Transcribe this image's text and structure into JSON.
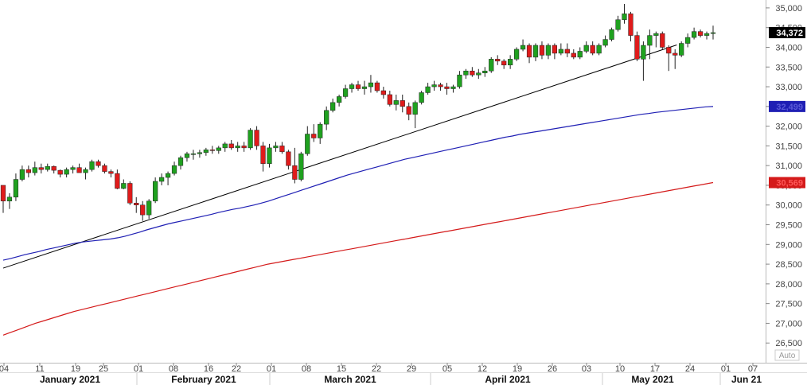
{
  "chart_data": {
    "type": "candlestick",
    "ylim": [
      26000,
      35200
    ],
    "y_ticks": [
      "35,000",
      "34,500",
      "34,000",
      "33,500",
      "33,000",
      "32,500",
      "32,000",
      "31,500",
      "31,000",
      "30,500",
      "30,000",
      "29,500",
      "29,000",
      "28,500",
      "28,000",
      "27,500",
      "27,000",
      "26,500"
    ],
    "x_day_ticks": [
      "04",
      "11",
      "19",
      "25",
      "01",
      "08",
      "16",
      "22",
      "01",
      "08",
      "15",
      "22",
      "29",
      "05",
      "12",
      "19",
      "26",
      "03",
      "10",
      "17",
      "24",
      "01",
      "07"
    ],
    "x_month_labels": [
      "January 2021",
      "February 2021",
      "March 2021",
      "April 2021",
      "May 2021",
      "Jun 21"
    ],
    "last_price_label": "34,372",
    "ma_short_label": "32,499",
    "ma_long_label": "30,569",
    "auto_label": "Auto",
    "colors": {
      "up": "#1fa11f",
      "down": "#e01b1b",
      "ma_short": "#1f1fb4",
      "ma_long": "#d41a1a",
      "trendline": "#000000"
    },
    "trendline": {
      "from": {
        "index": 0,
        "y": 28400
      },
      "to": {
        "index": 102,
        "y": 33930
      }
    },
    "ma_short": [
      28600,
      28640,
      28690,
      28740,
      28780,
      28820,
      28870,
      28910,
      28950,
      28990,
      29030,
      29060,
      29080,
      29100,
      29120,
      29140,
      29170,
      29210,
      29260,
      29310,
      29370,
      29420,
      29470,
      29520,
      29560,
      29600,
      29640,
      29680,
      29720,
      29760,
      29810,
      29850,
      29890,
      29920,
      29960,
      30000,
      30050,
      30100,
      30160,
      30220,
      30280,
      30340,
      30400,
      30460,
      30520,
      30580,
      30640,
      30700,
      30760,
      30810,
      30860,
      30910,
      30960,
      31010,
      31060,
      31110,
      31160,
      31200,
      31240,
      31280,
      31320,
      31360,
      31400,
      31440,
      31480,
      31520,
      31560,
      31600,
      31640,
      31680,
      31720,
      31750,
      31790,
      31820,
      31850,
      31880,
      31910,
      31940,
      31970,
      32000,
      32030,
      32060,
      32090,
      32120,
      32150,
      32180,
      32210,
      32240,
      32270,
      32300,
      32320,
      32350,
      32370,
      32390,
      32410,
      32430,
      32450,
      32470,
      32490,
      32499
    ],
    "ma_long": [
      26700,
      26760,
      26820,
      26880,
      26940,
      27000,
      27050,
      27100,
      27150,
      27200,
      27250,
      27300,
      27340,
      27380,
      27420,
      27460,
      27500,
      27540,
      27580,
      27620,
      27660,
      27700,
      27740,
      27780,
      27820,
      27860,
      27900,
      27940,
      27980,
      28020,
      28060,
      28100,
      28140,
      28180,
      28220,
      28260,
      28300,
      28340,
      28380,
      28420,
      28460,
      28500,
      28530,
      28560,
      28590,
      28620,
      28650,
      28680,
      28710,
      28740,
      28770,
      28800,
      28830,
      28860,
      28890,
      28920,
      28950,
      28980,
      29010,
      29040,
      29070,
      29100,
      29130,
      29160,
      29190,
      29220,
      29250,
      29280,
      29310,
      29340,
      29370,
      29400,
      29430,
      29460,
      29490,
      29520,
      29550,
      29580,
      29610,
      29640,
      29670,
      29700,
      29730,
      29760,
      29790,
      29820,
      29850,
      29880,
      29910,
      29940,
      29970,
      30000,
      30030,
      30060,
      30090,
      30120,
      30150,
      30180,
      30210,
      30240,
      30270,
      30300,
      30330,
      30360,
      30390,
      30420,
      30450,
      30480,
      30510,
      30540,
      30569
    ],
    "ohlc": [
      [
        30500,
        30500,
        29800,
        30100
      ],
      [
        30100,
        30300,
        29900,
        30200
      ],
      [
        30200,
        30800,
        30100,
        30650
      ],
      [
        30650,
        31000,
        30600,
        30900
      ],
      [
        30900,
        31000,
        30700,
        30820
      ],
      [
        30820,
        31100,
        30750,
        30950
      ],
      [
        30950,
        31050,
        30800,
        30900
      ],
      [
        30900,
        31050,
        30850,
        30980
      ],
      [
        30980,
        31000,
        30800,
        30880
      ],
      [
        30880,
        30900,
        30700,
        30780
      ],
      [
        30780,
        30950,
        30700,
        30900
      ],
      [
        30900,
        31000,
        30800,
        30950
      ],
      [
        30950,
        31050,
        30850,
        30820
      ],
      [
        30820,
        30950,
        30650,
        30900
      ],
      [
        30900,
        31150,
        30850,
        31100
      ],
      [
        31100,
        31150,
        30950,
        31000
      ],
      [
        31000,
        31050,
        30800,
        30850
      ],
      [
        30850,
        30900,
        30700,
        30800
      ],
      [
        30800,
        30900,
        30400,
        30420
      ],
      [
        30420,
        30650,
        30400,
        30550
      ],
      [
        30550,
        30600,
        30000,
        30050
      ],
      [
        30050,
        30200,
        29800,
        30000
      ],
      [
        30000,
        30100,
        29600,
        29750
      ],
      [
        29750,
        30150,
        29650,
        30100
      ],
      [
        30100,
        30700,
        30050,
        30600
      ],
      [
        30600,
        30800,
        30500,
        30700
      ],
      [
        30700,
        30850,
        30500,
        30800
      ],
      [
        30800,
        31100,
        30750,
        31000
      ],
      [
        31000,
        31250,
        30900,
        31200
      ],
      [
        31200,
        31350,
        31100,
        31300
      ],
      [
        31300,
        31400,
        31150,
        31300
      ],
      [
        31300,
        31400,
        31200,
        31330
      ],
      [
        31330,
        31450,
        31250,
        31400
      ],
      [
        31400,
        31500,
        31300,
        31380
      ],
      [
        31380,
        31500,
        31300,
        31450
      ],
      [
        31450,
        31600,
        31350,
        31550
      ],
      [
        31550,
        31650,
        31400,
        31450
      ],
      [
        31450,
        31600,
        31350,
        31500
      ],
      [
        31500,
        31600,
        31350,
        31450
      ],
      [
        31450,
        31950,
        31400,
        31900
      ],
      [
        31900,
        32000,
        31400,
        31500
      ],
      [
        31500,
        31600,
        30850,
        31050
      ],
      [
        31050,
        31550,
        30950,
        31450
      ],
      [
        31450,
        31600,
        31350,
        31500
      ],
      [
        31500,
        31600,
        31300,
        31350
      ],
      [
        31350,
        31400,
        30900,
        31000
      ],
      [
        31000,
        31450,
        30550,
        30650
      ],
      [
        30650,
        31350,
        30600,
        31300
      ],
      [
        31300,
        32000,
        31250,
        31800
      ],
      [
        31800,
        32050,
        31600,
        31700
      ],
      [
        31700,
        32100,
        31550,
        32050
      ],
      [
        32050,
        32500,
        31900,
        32400
      ],
      [
        32400,
        32700,
        32350,
        32600
      ],
      [
        32600,
        32800,
        32500,
        32750
      ],
      [
        32750,
        33050,
        32700,
        32950
      ],
      [
        32950,
        33100,
        32850,
        33050
      ],
      [
        33050,
        33150,
        32900,
        32950
      ],
      [
        32950,
        33150,
        32800,
        33000
      ],
      [
        33000,
        33300,
        32850,
        33100
      ],
      [
        33100,
        33150,
        32850,
        32900
      ],
      [
        32900,
        33000,
        32700,
        32800
      ],
      [
        32800,
        32900,
        32500,
        32550
      ],
      [
        32550,
        32800,
        32400,
        32650
      ],
      [
        32650,
        32800,
        32350,
        32500
      ],
      [
        32500,
        32600,
        32150,
        32300
      ],
      [
        32300,
        32650,
        31950,
        32600
      ],
      [
        32600,
        32900,
        32550,
        32850
      ],
      [
        32850,
        33100,
        32800,
        33000
      ],
      [
        33000,
        33150,
        32900,
        33050
      ],
      [
        33050,
        33100,
        32900,
        33000
      ],
      [
        33000,
        33100,
        32800,
        32950
      ],
      [
        32950,
        33050,
        32850,
        33000
      ],
      [
        33000,
        33400,
        32950,
        33300
      ],
      [
        33300,
        33450,
        33200,
        33400
      ],
      [
        33400,
        33500,
        33250,
        33300
      ],
      [
        33300,
        33450,
        33200,
        33350
      ],
      [
        33350,
        33500,
        33250,
        33400
      ],
      [
        33400,
        33750,
        33350,
        33700
      ],
      [
        33700,
        33800,
        33550,
        33650
      ],
      [
        33650,
        33700,
        33450,
        33550
      ],
      [
        33550,
        33800,
        33450,
        33700
      ],
      [
        33700,
        34000,
        33650,
        33950
      ],
      [
        33950,
        34200,
        33900,
        34050
      ],
      [
        34050,
        34100,
        33600,
        33750
      ],
      [
        33750,
        34100,
        33650,
        34050
      ],
      [
        34050,
        34150,
        33700,
        33800
      ],
      [
        33800,
        34100,
        33700,
        34050
      ],
      [
        34050,
        34100,
        33700,
        33850
      ],
      [
        33850,
        34100,
        33800,
        33950
      ],
      [
        33950,
        34100,
        33750,
        33850
      ],
      [
        33850,
        33950,
        33700,
        33750
      ],
      [
        33750,
        34000,
        33700,
        33900
      ],
      [
        33900,
        34150,
        33850,
        34050
      ],
      [
        34050,
        34150,
        33800,
        33850
      ],
      [
        33850,
        34100,
        33800,
        34050
      ],
      [
        34050,
        34300,
        34000,
        34200
      ],
      [
        34200,
        34500,
        34150,
        34450
      ],
      [
        34450,
        34800,
        34400,
        34700
      ],
      [
        34700,
        35100,
        34600,
        34850
      ],
      [
        34850,
        34900,
        34150,
        34300
      ],
      [
        34300,
        34400,
        33650,
        33700
      ],
      [
        33700,
        34150,
        33150,
        34050
      ],
      [
        34050,
        34450,
        33700,
        34300
      ],
      [
        34300,
        34400,
        34000,
        34350
      ],
      [
        34350,
        34400,
        33950,
        34000
      ],
      [
        34000,
        34050,
        33400,
        33850
      ],
      [
        33850,
        33950,
        33450,
        33800
      ],
      [
        33800,
        34150,
        33750,
        34100
      ],
      [
        34100,
        34350,
        34000,
        34250
      ],
      [
        34250,
        34500,
        34200,
        34400
      ],
      [
        34400,
        34450,
        34250,
        34300
      ],
      [
        34300,
        34400,
        34200,
        34350
      ],
      [
        34350,
        34550,
        34200,
        34372
      ]
    ]
  }
}
